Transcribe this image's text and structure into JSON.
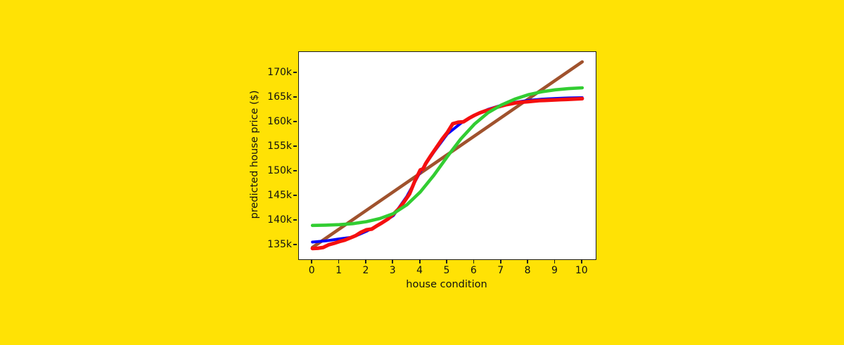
{
  "page": {
    "background_color": "#ffe205",
    "plot_background_color": "#ffffff",
    "spine_color": "#1c1c1c",
    "text_color": "#111111"
  },
  "chart_data": {
    "type": "line",
    "title": "",
    "xlabel": "house condition",
    "ylabel": "predicted house price ($)",
    "xlim": [
      -0.5,
      10.5
    ],
    "ylim": [
      132100,
      174300
    ],
    "grid": false,
    "legend": null,
    "x_ticks": [
      {
        "value": 0,
        "label": "0"
      },
      {
        "value": 1,
        "label": "1"
      },
      {
        "value": 2,
        "label": "2"
      },
      {
        "value": 3,
        "label": "3"
      },
      {
        "value": 4,
        "label": "4"
      },
      {
        "value": 5,
        "label": "5"
      },
      {
        "value": 6,
        "label": "6"
      },
      {
        "value": 7,
        "label": "7"
      },
      {
        "value": 8,
        "label": "8"
      },
      {
        "value": 9,
        "label": "9"
      },
      {
        "value": 10,
        "label": "10"
      }
    ],
    "y_ticks": [
      {
        "value": 135000,
        "label": "135k"
      },
      {
        "value": 140000,
        "label": "140k"
      },
      {
        "value": 145000,
        "label": "145k"
      },
      {
        "value": 150000,
        "label": "150k"
      },
      {
        "value": 155000,
        "label": "155k"
      },
      {
        "value": 160000,
        "label": "160k"
      },
      {
        "value": 165000,
        "label": "165k"
      },
      {
        "value": 170000,
        "label": "170k"
      }
    ],
    "series": [
      {
        "name": "brown-straight-line",
        "color": "#a0522d",
        "line_width": 4.6,
        "x": [
          0,
          10
        ],
        "y": [
          134500,
          172300
        ]
      },
      {
        "name": "blue-smooth-sigmoid",
        "color": "#0000ff",
        "line_width": 4.0,
        "x": [
          0,
          0.5,
          1,
          1.5,
          2,
          2.5,
          3,
          3.5,
          4,
          4.5,
          5,
          5.5,
          6,
          6.5,
          7,
          7.5,
          8,
          8.5,
          9,
          9.5,
          10
        ],
        "y": [
          135600,
          135850,
          136250,
          136600,
          137800,
          139200,
          141000,
          144900,
          149900,
          153900,
          157600,
          159800,
          161400,
          162600,
          163450,
          164050,
          164450,
          164700,
          164850,
          164950,
          165000
        ]
      },
      {
        "name": "red-noisy-sigmoid",
        "color": "#f50f0f",
        "line_width": 5.2,
        "x": [
          0,
          0.2,
          0.4,
          0.6,
          0.8,
          1,
          1.2,
          1.4,
          1.6,
          1.8,
          2,
          2.2,
          2.4,
          2.6,
          2.8,
          3,
          3.2,
          3.4,
          3.6,
          3.8,
          4,
          4.1,
          4.2,
          4.4,
          4.6,
          4.8,
          5,
          5.2,
          5.4,
          5.6,
          5.8,
          6,
          6.2,
          6.4,
          6.6,
          6.8,
          7,
          7.2,
          7.4,
          7.6,
          7.8,
          8,
          8.2,
          8.4,
          8.6,
          8.8,
          9,
          9.2,
          9.4,
          9.6,
          9.8,
          10
        ],
        "y": [
          134300,
          134350,
          134500,
          135050,
          135350,
          135700,
          136000,
          136450,
          136900,
          137600,
          138100,
          138250,
          138950,
          139600,
          140300,
          141300,
          142350,
          143800,
          145400,
          148100,
          150300,
          150500,
          151600,
          153300,
          154900,
          156500,
          157900,
          159700,
          160000,
          160100,
          160800,
          161400,
          161900,
          162300,
          162600,
          163000,
          163300,
          163600,
          163800,
          164000,
          164100,
          164200,
          164300,
          164400,
          164450,
          164500,
          164550,
          164600,
          164650,
          164700,
          164750,
          164800
        ]
      },
      {
        "name": "green-smooth-sigmoid",
        "color": "#32cd32",
        "line_width": 4.6,
        "x": [
          0,
          0.5,
          1,
          1.5,
          2,
          2.5,
          3,
          3.5,
          4,
          4.5,
          5,
          5.5,
          6,
          6.5,
          7,
          7.5,
          8,
          8.5,
          9,
          9.5,
          10
        ],
        "y": [
          139000,
          139050,
          139150,
          139350,
          139750,
          140400,
          141400,
          143200,
          145800,
          149200,
          153000,
          156600,
          159600,
          161900,
          163500,
          164700,
          165600,
          166200,
          166600,
          166850,
          167000
        ]
      }
    ]
  }
}
